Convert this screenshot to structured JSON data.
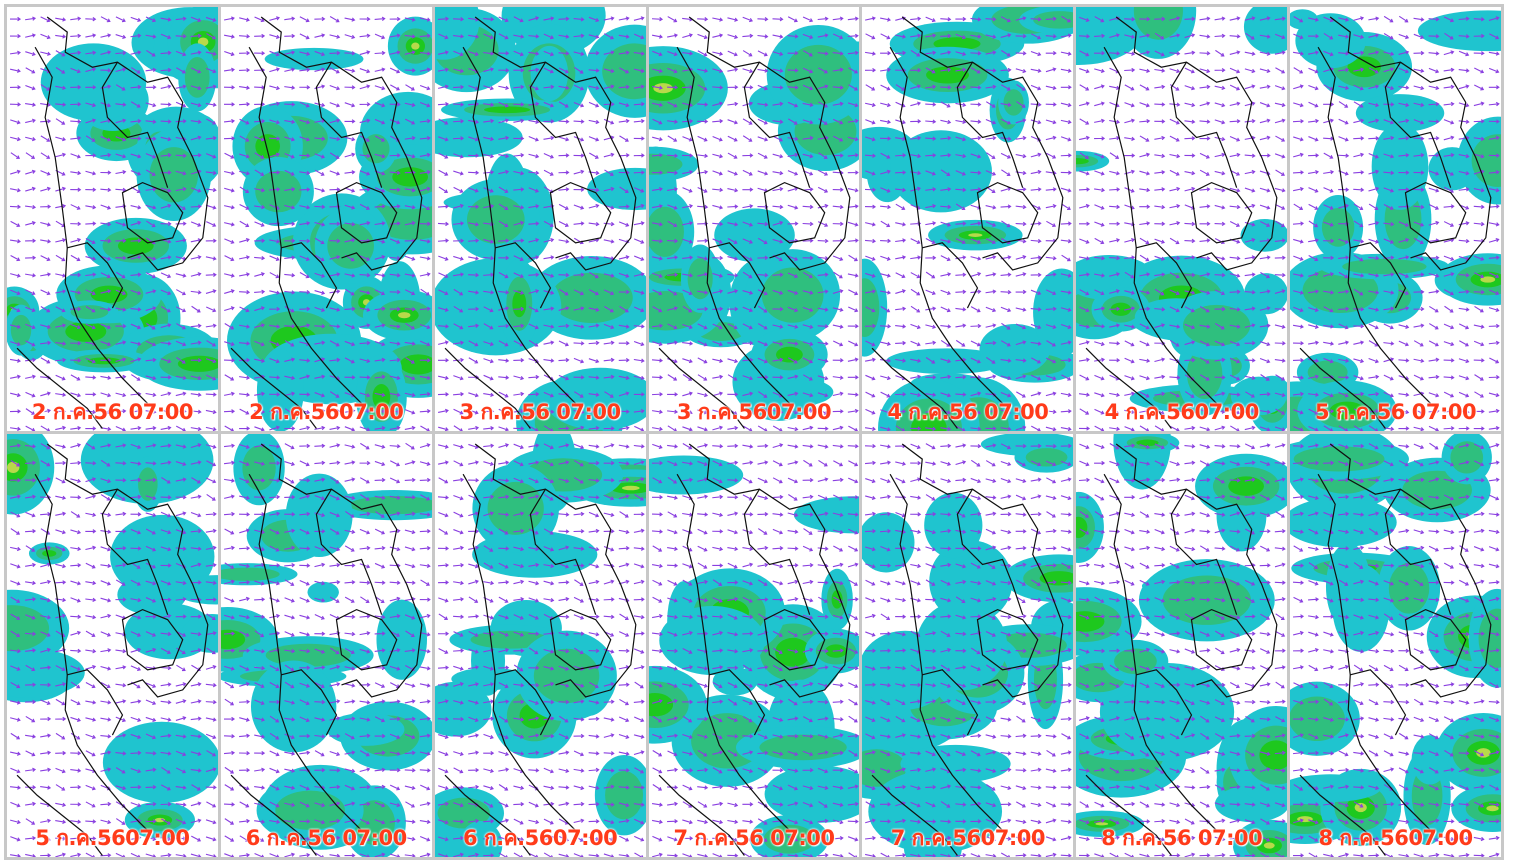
{
  "colors": {
    "rain_light": "#1fc4cf",
    "rain_moderate": "#2fbf7e",
    "rain_heavy": "#1ec81e",
    "rain_very_heavy": "#b8d94a",
    "wind_arrow": "#8a3fe0",
    "coastline": "#111111",
    "label": "#ff3b1a"
  },
  "panels": [
    {
      "label": "2 ก.ค.56 07:00",
      "intensity": 0.85,
      "seed": 11
    },
    {
      "label": "2 ก.ค.5607:00",
      "intensity": 0.78,
      "seed": 23
    },
    {
      "label": "3 ก.ค.56 07:00",
      "intensity": 0.55,
      "seed": 37
    },
    {
      "label": "3 ก.ค.5607:00",
      "intensity": 0.62,
      "seed": 41
    },
    {
      "label": "4 ก.ค.56 07:00",
      "intensity": 0.58,
      "seed": 53
    },
    {
      "label": "4 ก.ค.5607:00",
      "intensity": 0.6,
      "seed": 67
    },
    {
      "label": "5 ก.ค.56 07:00",
      "intensity": 0.55,
      "seed": 71
    },
    {
      "label": "5 ก.ค.5607:00",
      "intensity": 0.45,
      "seed": 83
    },
    {
      "label": "6 ก.ค.56 07:00",
      "intensity": 0.42,
      "seed": 97
    },
    {
      "label": "6 ก.ค.5607:00",
      "intensity": 0.55,
      "seed": 101
    },
    {
      "label": "7 ก.ค.56 07:00",
      "intensity": 0.5,
      "seed": 113
    },
    {
      "label": "7 ก.ค.5607:00",
      "intensity": 0.55,
      "seed": 127
    },
    {
      "label": "8 ก.ค.56 07:00",
      "intensity": 0.68,
      "seed": 131
    },
    {
      "label": "8 ก.ค.5607:00",
      "intensity": 0.72,
      "seed": 149
    }
  ]
}
